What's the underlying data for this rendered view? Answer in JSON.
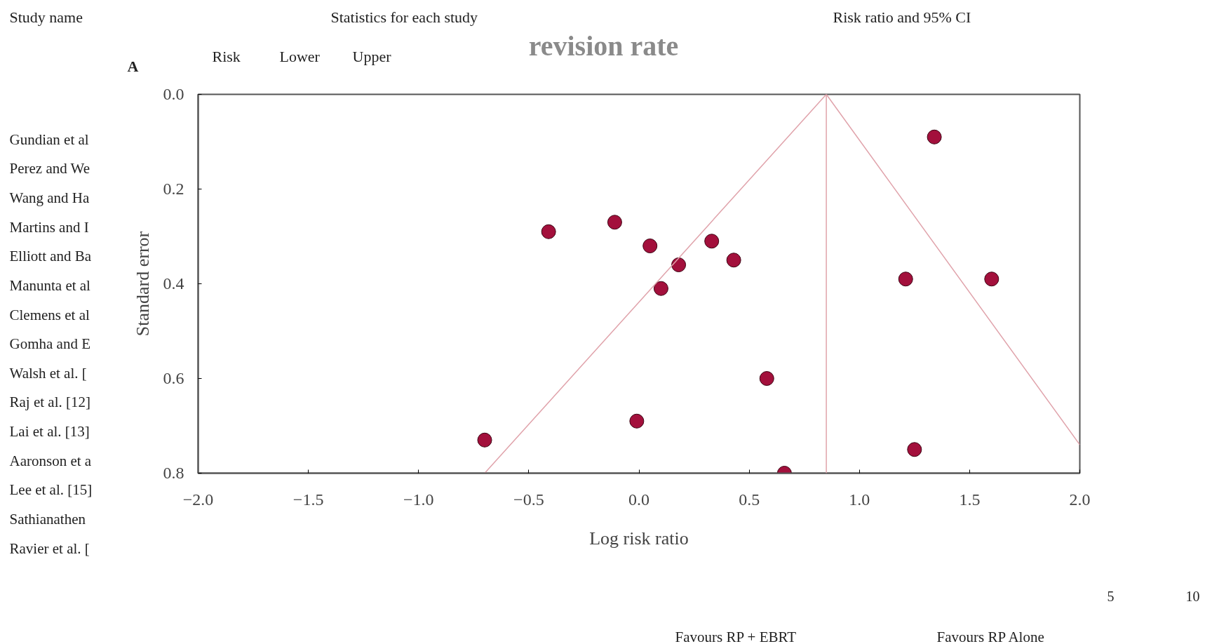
{
  "chart_data": {
    "type": "scatter",
    "title": "revision rate",
    "xlabel": "Log risk ratio",
    "ylabel": "Standard error",
    "xlim": [
      -2.0,
      2.0
    ],
    "ylim": [
      0.8,
      0.0
    ],
    "xticks": [
      {
        "value": -2.0,
        "label": "−2.0"
      },
      {
        "value": -1.5,
        "label": "−1.5"
      },
      {
        "value": -1.0,
        "label": "−1.0"
      },
      {
        "value": -0.5,
        "label": "−0.5"
      },
      {
        "value": 0.0,
        "label": "0.0"
      },
      {
        "value": 0.5,
        "label": "0.5"
      },
      {
        "value": 1.0,
        "label": "1.0"
      },
      {
        "value": 1.5,
        "label": "1.5"
      },
      {
        "value": 2.0,
        "label": "2.0"
      }
    ],
    "yticks": [
      {
        "value": 0.0,
        "label": "0.0"
      },
      {
        "value": 0.2,
        "label": "0.2"
      },
      {
        "value": 0.4,
        "label": "0.4"
      },
      {
        "value": 0.6,
        "label": "0.6"
      },
      {
        "value": 0.8,
        "label": "0.8"
      }
    ],
    "grid": false,
    "series": [
      {
        "marker": "circle",
        "color": "#a3103c",
        "x": [
          1.34,
          -0.41,
          -0.11,
          0.05,
          0.33,
          0.18,
          0.43,
          0.1,
          1.21,
          1.6,
          0.58,
          -0.01,
          -0.7,
          1.25,
          0.66
        ],
        "values": [
          0.09,
          0.29,
          0.27,
          0.32,
          0.31,
          0.36,
          0.35,
          0.41,
          0.39,
          0.39,
          0.6,
          0.69,
          0.73,
          0.75,
          0.8
        ]
      },
      {
        "type": "line",
        "color": "#e0a3ab",
        "x": [
          -0.7,
          0.85,
          2.0
        ],
        "values": [
          0.8,
          0.0,
          0.74
        ]
      }
    ],
    "ref_lines": [
      {
        "axis": "x",
        "value": 0.85,
        "color": "#e0a3ab"
      }
    ],
    "annotations": [
      "Study name",
      "Statistics for each study",
      "Risk ratio and 95% CI",
      "Risk",
      "Lower",
      "Upper",
      "A",
      "Gundian et al",
      "Perez and We",
      "Wang and Ha",
      "Martins and I",
      "Elliott and Ba",
      "Manunta et al",
      "Clemens et al",
      "Gomha and E",
      "Walsh et al. [",
      "Raj et al. [12]",
      "Lai et al. [13]",
      "Aaronson et a",
      "Lee et al. [15]",
      "Sathianathen",
      "Ravier et al. [",
      "5",
      "10",
      "Favours RP + EBRT",
      "Favours RP Alone"
    ]
  }
}
